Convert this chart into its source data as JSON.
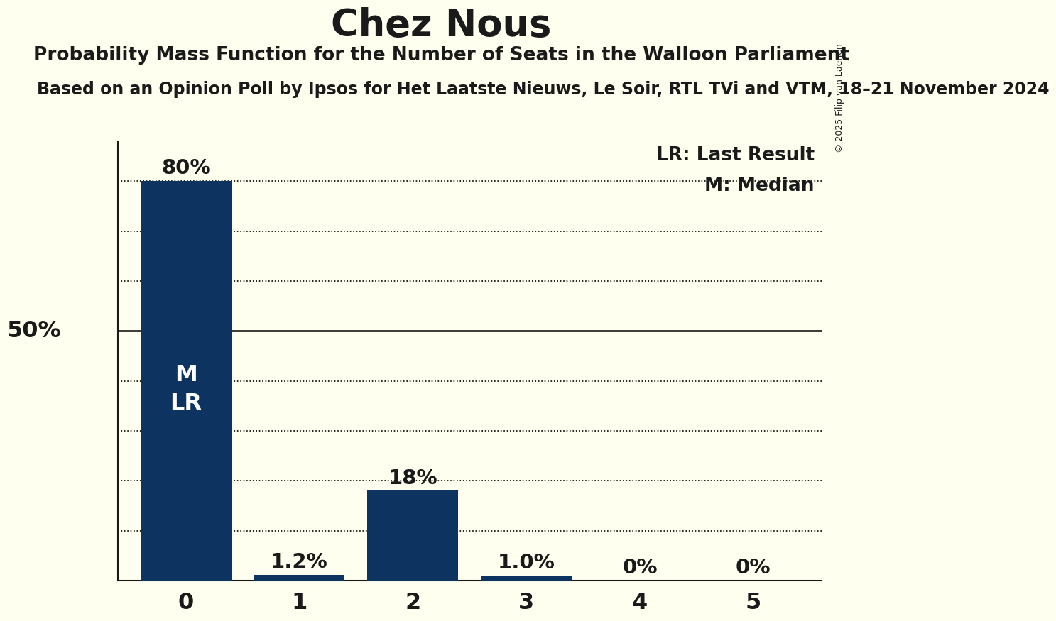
{
  "title": "Chez Nous",
  "subtitle": "Probability Mass Function for the Number of Seats in the Walloon Parliament",
  "sub_subtitle": "Based on an Opinion Poll by Ipsos for Het Laatste Nieuws, Le Soir, RTL TVi and VTM, 18–21 November 2024",
  "copyright": "© 2025 Filip van Laenen",
  "categories": [
    0,
    1,
    2,
    3,
    4,
    5
  ],
  "values": [
    0.8,
    0.012,
    0.18,
    0.01,
    0.0,
    0.0
  ],
  "bar_color": "#0d3461",
  "background_color": "#fffff0",
  "text_color": "#1a1a1a",
  "ylabel_50": "50%",
  "bar_labels": [
    "80%",
    "1.2%",
    "18%",
    "1.0%",
    "0%",
    "0%"
  ],
  "inside_label_x0": "M\nLR",
  "legend_lr": "LR: Last Result",
  "legend_m": "M: Median",
  "ylim": [
    0,
    0.88
  ],
  "yticks_dotted": [
    0.1,
    0.2,
    0.3,
    0.4,
    0.6,
    0.7,
    0.8
  ],
  "ytick_solid": 0.5,
  "title_fontsize": 38,
  "subtitle_fontsize": 19,
  "sub_subtitle_fontsize": 17,
  "bar_label_fontsize": 21,
  "axis_tick_fontsize": 23,
  "legend_fontsize": 19,
  "inside_label_fontsize": 23,
  "ylabel50_fontsize": 23
}
